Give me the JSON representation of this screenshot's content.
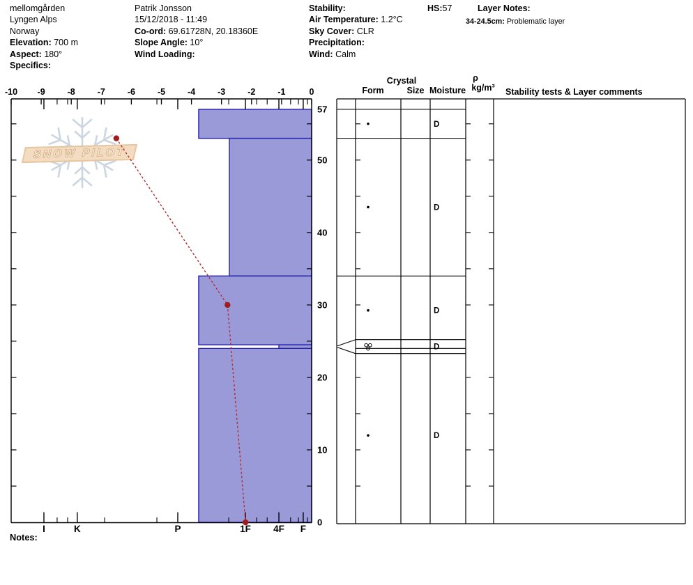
{
  "header": {
    "site": {
      "name": "mellomgården",
      "range": "Lyngen Alps",
      "country": "Norway",
      "elevation_label": "Elevation:",
      "elevation": "700 m",
      "aspect_label": "Aspect:",
      "aspect": "180°",
      "specifics_label": "Specifics:",
      "specifics": ""
    },
    "observer": {
      "name": "Patrik Jonsson",
      "datetime": "15/12/2018 - 11:49",
      "coord_label": "Co-ord:",
      "coord": "69.61728N, 20.18360E",
      "slope_label": "Slope Angle:",
      "slope": "10°",
      "wind_loading_label": "Wind Loading:",
      "wind_loading": ""
    },
    "conditions": {
      "stability_label": "Stability:",
      "stability": "",
      "air_temp_label": "Air Temperature:",
      "air_temp": "1.2°C",
      "sky_label": "Sky Cover:",
      "sky": "CLR",
      "precip_label": "Precipitation:",
      "precip": "",
      "wind_label": "Wind:",
      "wind": "Calm"
    },
    "hs_label": "HS:",
    "hs": "57",
    "layer_notes_label": "Layer Notes:",
    "layer_note_range": "34-24.5cm:",
    "layer_note_text": "Problematic layer"
  },
  "table_headers": {
    "crystal": "Crystal",
    "form": "Form",
    "size": "Size",
    "moisture": "Moisture",
    "rho": "ρ",
    "rho_units": "kg/m³",
    "comments": "Stability tests & Layer comments"
  },
  "notes_label": "Notes:",
  "logo_text": "SNOW PILOT",
  "chart_data": {
    "type": "snow-profile",
    "depth_axis": {
      "unit": "cm",
      "surface_cm": 57,
      "labels": [
        57,
        50,
        40,
        30,
        20,
        10,
        0
      ],
      "tick_step_cm": 5
    },
    "temp_axis": {
      "unit": "°C",
      "min": -10,
      "max": 0,
      "labels": [
        -10,
        -9,
        -8,
        -7,
        -6,
        -5,
        -4,
        -3,
        -2,
        -1,
        0
      ]
    },
    "hardness_axis": {
      "labels": [
        "I",
        "K",
        "P",
        "1F",
        "4F",
        "F"
      ],
      "fracs": [
        0.109,
        0.22,
        0.5545,
        0.7796,
        0.891,
        0.972
      ],
      "minor_fracs": [
        0.153,
        0.188,
        0.311,
        0.485,
        0.724,
        0.817,
        0.852,
        0.93,
        0.956,
        0.986
      ]
    },
    "layers": [
      {
        "top_cm": 57,
        "bottom_cm": 53,
        "hardness_frac": 0.624,
        "form": "dot",
        "moisture": "D"
      },
      {
        "top_cm": 53,
        "bottom_cm": 34,
        "hardness_frac": 0.726,
        "form": "dot",
        "moisture": "D"
      },
      {
        "top_cm": 34,
        "bottom_cm": 24.5,
        "hardness_frac": 0.624,
        "form": "dot",
        "moisture": "D"
      },
      {
        "top_cm": 24.5,
        "bottom_cm": 24,
        "hardness_frac": 0.891,
        "form": "circles-cluster",
        "moisture": "D",
        "arrow": true
      },
      {
        "top_cm": 24,
        "bottom_cm": 0,
        "hardness_frac": 0.624,
        "form": "dot",
        "moisture": "D"
      }
    ],
    "temperature_profile": [
      {
        "depth_cm": 53,
        "temp_c": -6.5
      },
      {
        "depth_cm": 30,
        "temp_c": -2.8
      },
      {
        "depth_cm": 0,
        "temp_c": -2.2
      }
    ],
    "colors": {
      "bar_fill": "#9b9ad8",
      "bar_stroke": "#2522ae",
      "temp_line": "#b32d2d",
      "temp_dot": "#a01d1d",
      "axis": "#000000",
      "logo_snowflake": "#ccd6e1"
    }
  }
}
